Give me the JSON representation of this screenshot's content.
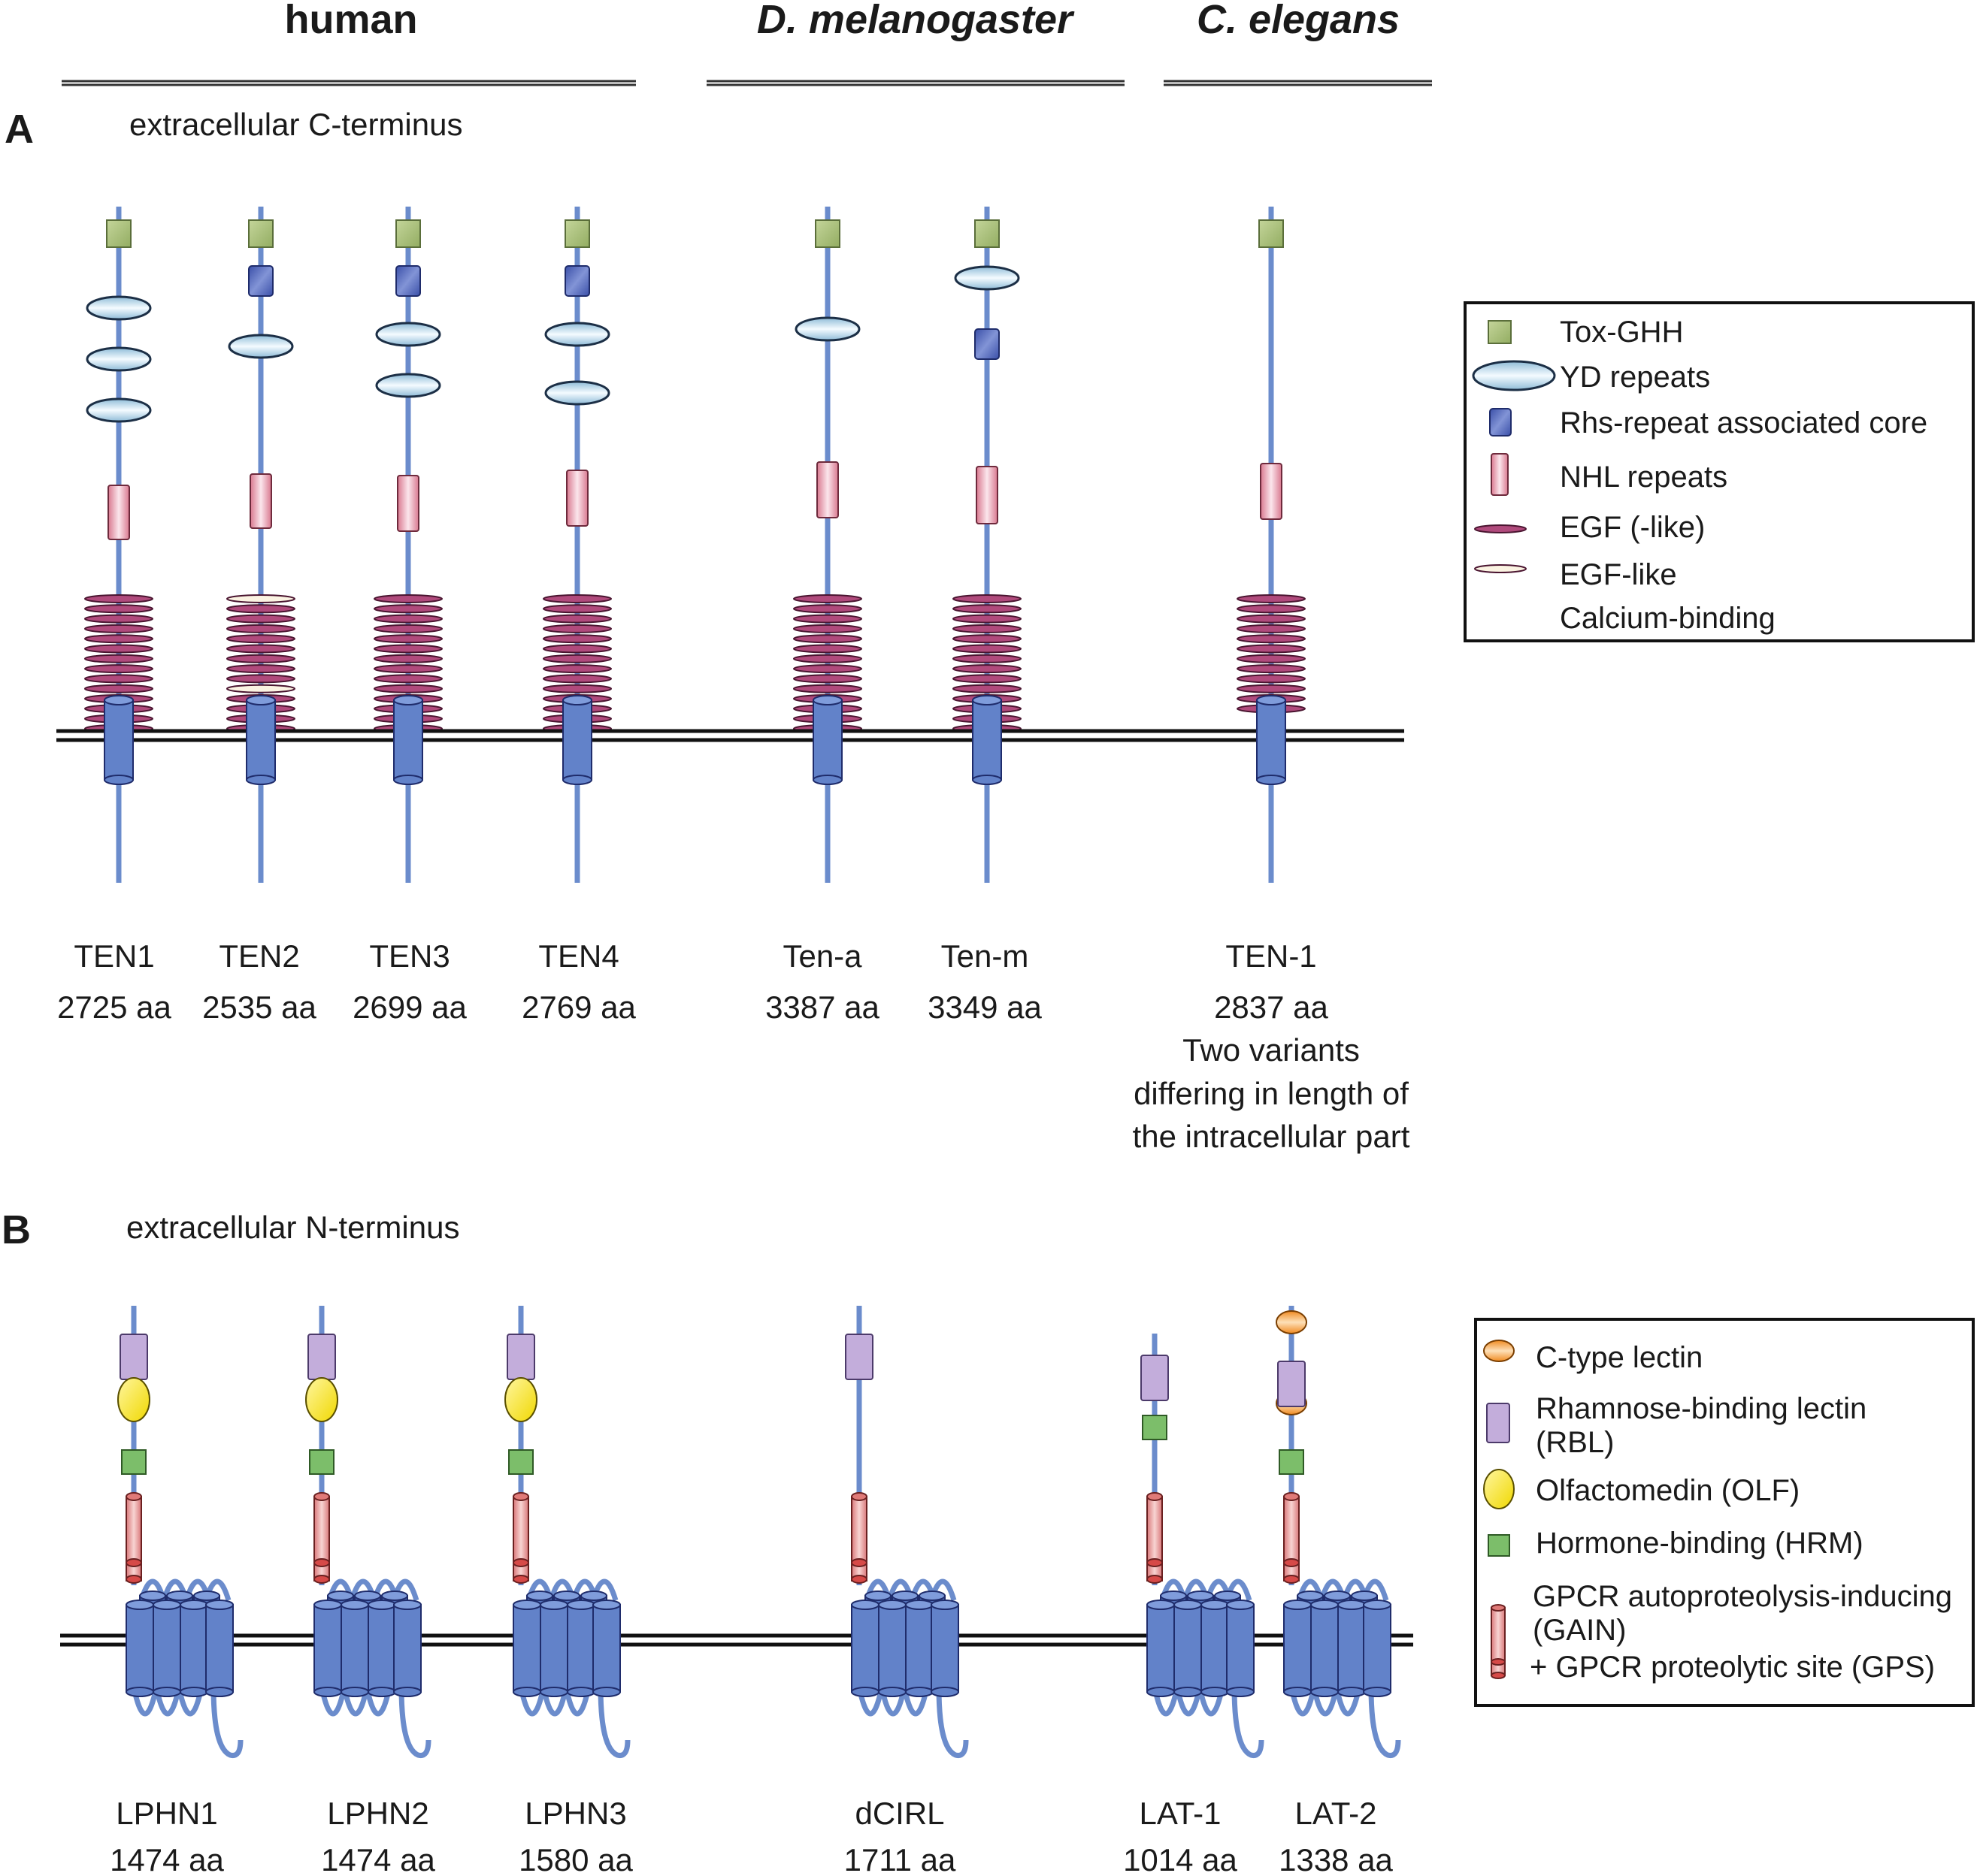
{
  "headers": {
    "human": "human",
    "melanogaster": "D. melanogaster",
    "elegans": "C. elegans"
  },
  "panel_a": {
    "letter": "A",
    "subtitle": "extracellular C-terminus",
    "proteins": [
      {
        "name": "TEN1",
        "length": "2725 aa"
      },
      {
        "name": "TEN2",
        "length": "2535 aa"
      },
      {
        "name": "TEN3",
        "length": "2699 aa"
      },
      {
        "name": "TEN4",
        "length": "2769 aa"
      },
      {
        "name": "Ten-a",
        "length": "3387 aa"
      },
      {
        "name": "Ten-m",
        "length": "3349 aa"
      },
      {
        "name": "TEN-1",
        "length": "2837 aa"
      }
    ],
    "note_lines": [
      "Two variants",
      "differing in length of",
      "the intracellular part"
    ],
    "legend": [
      {
        "icon": "tox-ghh-square",
        "label": "Tox-GHH"
      },
      {
        "icon": "yd-repeat-ellipse",
        "label": "YD repeats"
      },
      {
        "icon": "rhs-core-square",
        "label": "Rhs-repeat associated core"
      },
      {
        "icon": "nhl-repeat-rect",
        "label": "NHL repeats"
      },
      {
        "icon": "egf-ellipse",
        "label": "EGF (-like)"
      },
      {
        "icon": "egf-calcium-ellipse",
        "label": "EGF-like"
      },
      {
        "icon": "",
        "label": "Calcium-binding"
      }
    ]
  },
  "panel_b": {
    "letter": "B",
    "subtitle": "extracellular N-terminus",
    "proteins": [
      {
        "name": "LPHN1",
        "length": "1474 aa"
      },
      {
        "name": "LPHN2",
        "length": "1474 aa"
      },
      {
        "name": "LPHN3",
        "length": "1580 aa"
      },
      {
        "name": "dCIRL",
        "length": "1711 aa"
      },
      {
        "name": "LAT-1",
        "length": "1014 aa"
      },
      {
        "name": "LAT-2",
        "length": "1338 aa"
      }
    ],
    "legend": [
      {
        "icon": "c-type-lectin-ellipse",
        "lines": [
          "C-type lectin"
        ]
      },
      {
        "icon": "rbl-rect",
        "lines": [
          "Rhamnose-binding lectin",
          "(RBL)"
        ]
      },
      {
        "icon": "olfactomedin-ellipse",
        "lines": [
          "Olfactomedin (OLF)"
        ]
      },
      {
        "icon": "hrm-square",
        "lines": [
          "Hormone-binding (HRM)"
        ]
      },
      {
        "icon": "gain-cylinder",
        "lines": [
          "GPCR autoproteolysis-inducing",
          "(GAIN)",
          "+ GPCR proteolytic site (GPS)"
        ]
      }
    ]
  },
  "colors": {
    "line": "#6b8ccc",
    "membrane": "#111111",
    "tox": "#a7bd78",
    "yd": "#b7d9ea",
    "rhs": "#4b63b8",
    "nhl": "#e8a3b6",
    "egf": "#b04a7c",
    "egf_ca": "#fbf3e2",
    "tm": "#6282c9",
    "lectin": "#f5a040",
    "rbl": "#c3addb",
    "olf": "#f7e520",
    "hrm": "#7cbe6a",
    "gain": "#e59a98"
  }
}
